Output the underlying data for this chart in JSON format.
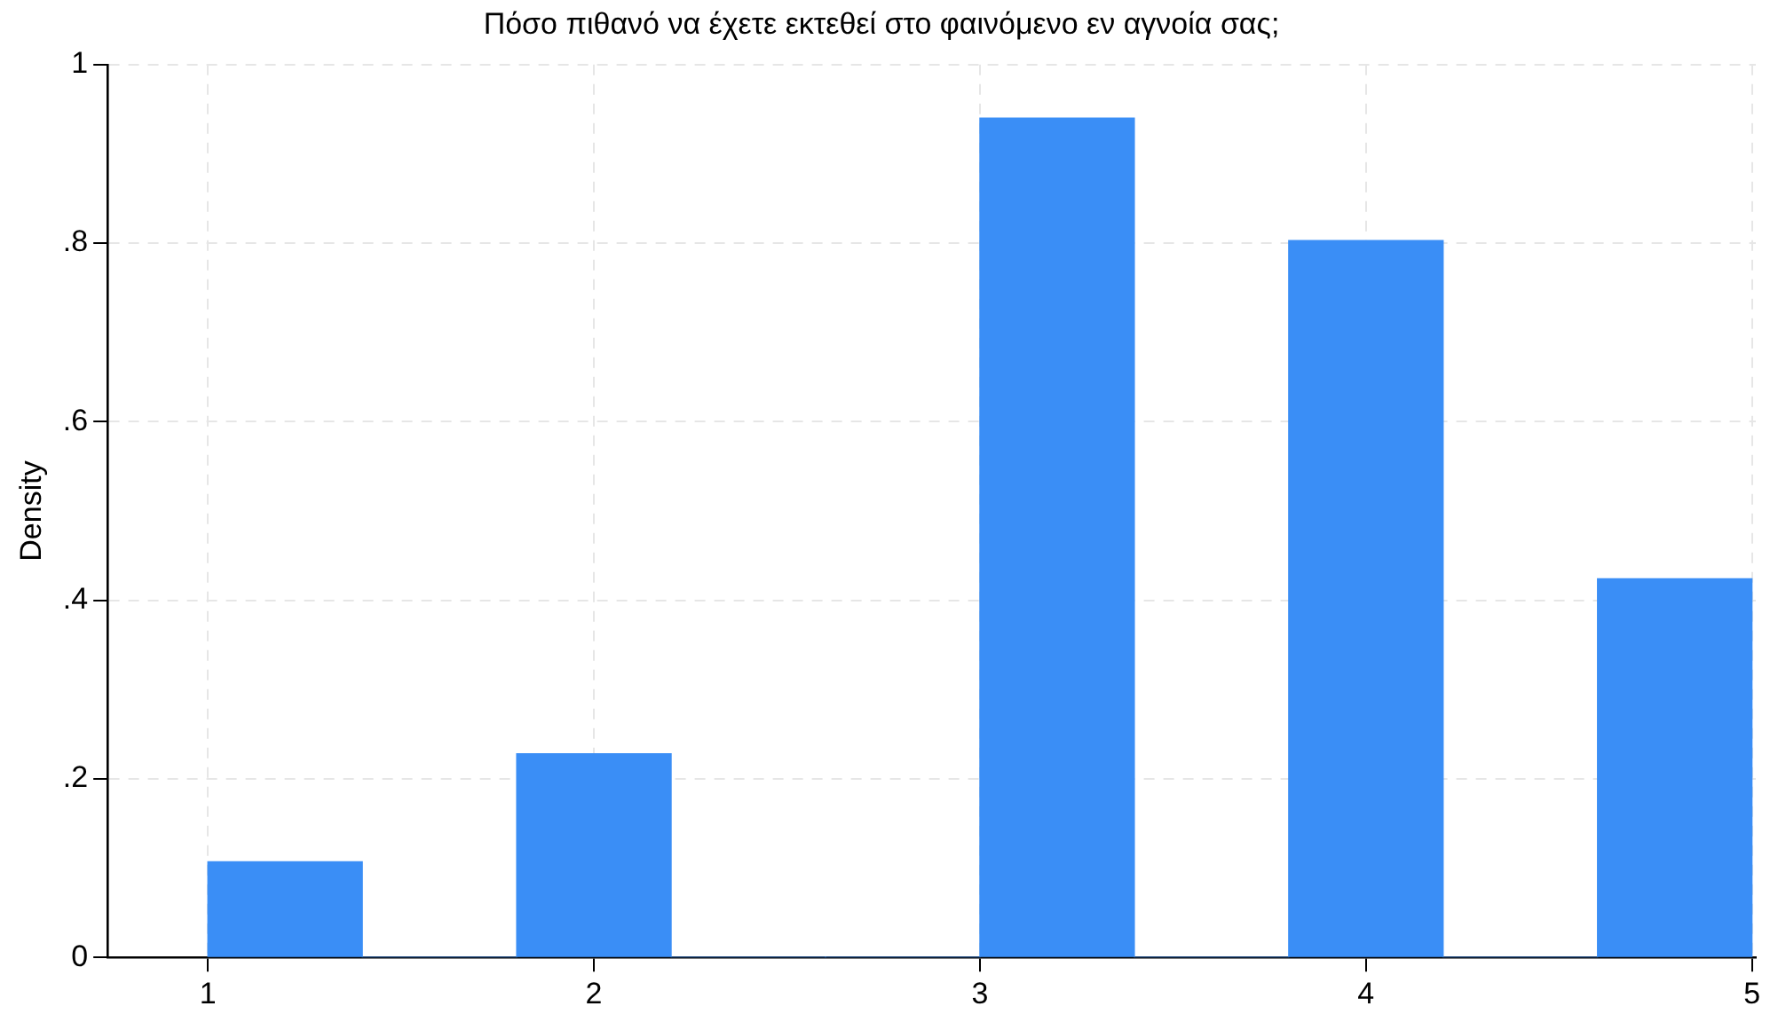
{
  "chart_data": {
    "type": "histogram",
    "title": "Πόσο πιθανό να έχετε εκτεθεί στο φαινόμενο εν αγνοία σας;",
    "ylabel": "Density",
    "bins": [
      1,
      1.4,
      1.8,
      2.2,
      2.6,
      3,
      3.4,
      3.8,
      4.2,
      4.6,
      5
    ],
    "values": [
      0.107,
      0,
      0.228,
      0,
      0,
      0.94,
      0,
      0.803,
      0,
      0.424
    ],
    "color": "#3a8ef6",
    "xlim": [
      0.74,
      5.01
    ],
    "xticks": [
      1,
      2,
      3,
      4,
      5
    ],
    "ylim": [
      0,
      1
    ],
    "yticks": [
      0,
      {
        "value": 0.2,
        "label": ".2"
      },
      {
        "value": 0.4,
        "label": ".4"
      },
      {
        "value": 0.6,
        "label": ".6"
      },
      {
        "value": 0.8,
        "label": ".8"
      },
      1
    ],
    "grid": true
  }
}
